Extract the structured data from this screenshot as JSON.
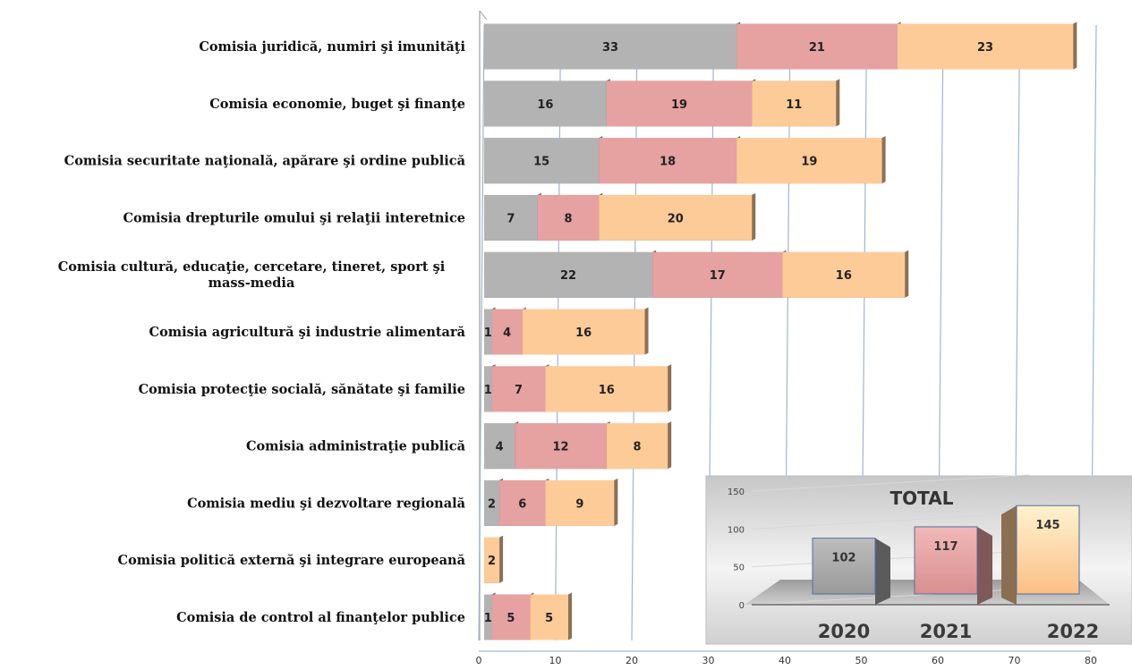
{
  "chart_data": [
    {
      "type": "bar",
      "orientation": "horizontal",
      "stacked": true,
      "categories": [
        "Comisia juridică, numiri şi imunităţi",
        "Comisia economie, buget şi finanţe",
        "Comisia securitate naţională, apărare şi ordine publică",
        "Comisia drepturile omului şi relaţii interetnice",
        "Comisia cultură, educaţie, cercetare, tineret, sport şi mass-media",
        "Comisia agricultură şi industrie alimentară",
        "Comisia protecţie socială, sănătate şi familie",
        "Comisia administraţie publică",
        "Comisia mediu şi dezvoltare regională",
        "Comisia politică externă şi integrare europeană",
        "Comisia de control al finanţelor publice"
      ],
      "series": [
        {
          "values": [
            33,
            16,
            15,
            7,
            22,
            1,
            1,
            4,
            2,
            0,
            1
          ],
          "color": "#b3b3b3"
        },
        {
          "values": [
            21,
            19,
            18,
            8,
            17,
            4,
            7,
            12,
            6,
            0,
            5
          ],
          "color": "#e6a1a1"
        },
        {
          "values": [
            23,
            11,
            19,
            20,
            16,
            16,
            16,
            8,
            9,
            2,
            5
          ],
          "color": "#fdcb98"
        }
      ],
      "xlim": [
        0,
        80
      ],
      "xticks": [
        0,
        10,
        20,
        30,
        40,
        50,
        60,
        70,
        80
      ],
      "grid": true,
      "legend": "none"
    },
    {
      "type": "bar",
      "title": "TOTAL",
      "categories": [
        "2020",
        "2021",
        "2022"
      ],
      "values": [
        102,
        117,
        145
      ],
      "colors": [
        "#a6a6a6",
        "#e6a0a0",
        "#fdca93"
      ],
      "ylim": [
        0,
        150
      ],
      "yticks": [
        0,
        50,
        100,
        150
      ],
      "legend": "none"
    }
  ]
}
